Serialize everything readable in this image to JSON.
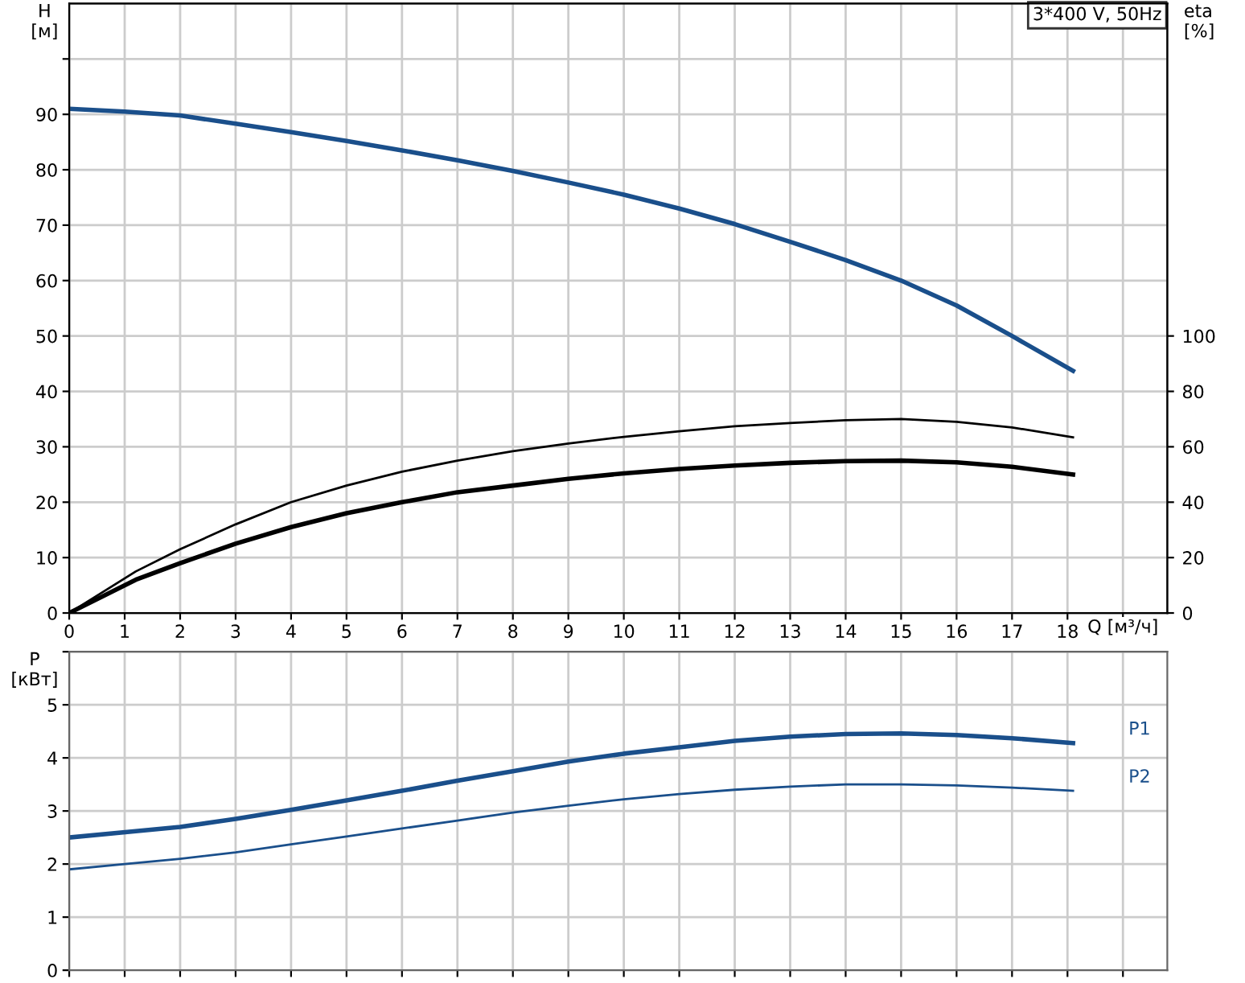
{
  "chart_data": [
    {
      "type": "line",
      "xlabel": "Q [м³/ч]",
      "ylabel": "H\n[м]",
      "y2label": "eta\n[%]",
      "annotations": [
        "3*400 V, 50Hz"
      ],
      "xlim": [
        0,
        19.8
      ],
      "xticks": [
        0,
        1,
        2,
        3,
        4,
        5,
        6,
        7,
        8,
        9,
        10,
        11,
        12,
        13,
        14,
        15,
        16,
        17,
        18,
        {
          "value": 19,
          "label": null
        }
      ],
      "ylim": [
        0,
        110
      ],
      "yticks": [
        0,
        10,
        20,
        30,
        40,
        50,
        60,
        70,
        80,
        90,
        {
          "value": 100,
          "label": null
        }
      ],
      "y2lim": [
        0,
        220
      ],
      "y2ticks": [
        0,
        20,
        40,
        60,
        80,
        100
      ],
      "grid": true,
      "legend": false,
      "series": [
        {
          "color": "#1a4f8b",
          "x": [
            0,
            1,
            2,
            3,
            4,
            5,
            6,
            7,
            8,
            9,
            10,
            11,
            12,
            13,
            14,
            15,
            16,
            17,
            18.1
          ],
          "values": [
            91,
            90.5,
            89.8,
            88.3,
            86.8,
            85.2,
            83.5,
            81.7,
            79.8,
            77.7,
            75.5,
            73,
            70.2,
            67,
            63.7,
            60,
            55.5,
            50,
            43.7
          ]
        },
        {
          "color": "#000000",
          "axis": "y2",
          "x": [
            0,
            1.2,
            2,
            3,
            4,
            5,
            6,
            7,
            8,
            9,
            10,
            11,
            12,
            13,
            14,
            15,
            16,
            17,
            18.1
          ],
          "values": [
            0,
            15,
            23,
            32,
            40,
            46,
            51,
            55,
            58.4,
            61.2,
            63.6,
            65.6,
            67.4,
            68.6,
            69.6,
            70,
            69,
            67,
            63.4
          ]
        },
        {
          "color": "#000000",
          "axis": "y2",
          "x": [
            0,
            1.2,
            2,
            3,
            4,
            5,
            6,
            7,
            8,
            9,
            10,
            11,
            12,
            13,
            14,
            15,
            16,
            17,
            18.1
          ],
          "values": [
            0,
            12,
            18,
            25,
            31,
            36,
            40,
            43.6,
            46,
            48.4,
            50.4,
            52,
            53.2,
            54.2,
            54.8,
            55,
            54.4,
            52.8,
            50
          ]
        }
      ]
    },
    {
      "type": "line",
      "ylabel": "P\n[кВт]",
      "xlim": [
        0,
        19.8
      ],
      "xticks": [
        0,
        1,
        2,
        3,
        4,
        5,
        6,
        7,
        8,
        9,
        10,
        11,
        12,
        13,
        14,
        15,
        16,
        17,
        18,
        19
      ],
      "ylim": [
        0,
        6
      ],
      "yticks": [
        0,
        1,
        2,
        3,
        4,
        5,
        {
          "value": 6,
          "label": null
        }
      ],
      "grid": true,
      "tick_labels": "y",
      "legend": false,
      "series": [
        {
          "name": "P1",
          "color": "#1a4f8b",
          "x": [
            0,
            1.2,
            2,
            3,
            4,
            5,
            6,
            7,
            8,
            9,
            10,
            11,
            12,
            13,
            14,
            15,
            16,
            17,
            18.1
          ],
          "values": [
            2.5,
            2.62,
            2.7,
            2.85,
            3.02,
            3.2,
            3.38,
            3.57,
            3.75,
            3.93,
            4.08,
            4.2,
            4.32,
            4.4,
            4.45,
            4.46,
            4.43,
            4.37,
            4.28
          ]
        },
        {
          "name": "P2",
          "color": "#1a4f8b",
          "x": [
            0,
            1,
            2,
            3,
            4,
            5,
            6,
            7,
            8,
            9,
            10,
            11,
            12,
            13,
            14,
            15,
            16,
            17,
            18.1
          ],
          "values": [
            1.9,
            2.0,
            2.1,
            2.22,
            2.37,
            2.52,
            2.67,
            2.82,
            2.97,
            3.1,
            3.22,
            3.32,
            3.4,
            3.46,
            3.5,
            3.5,
            3.48,
            3.44,
            3.38
          ]
        }
      ]
    }
  ]
}
